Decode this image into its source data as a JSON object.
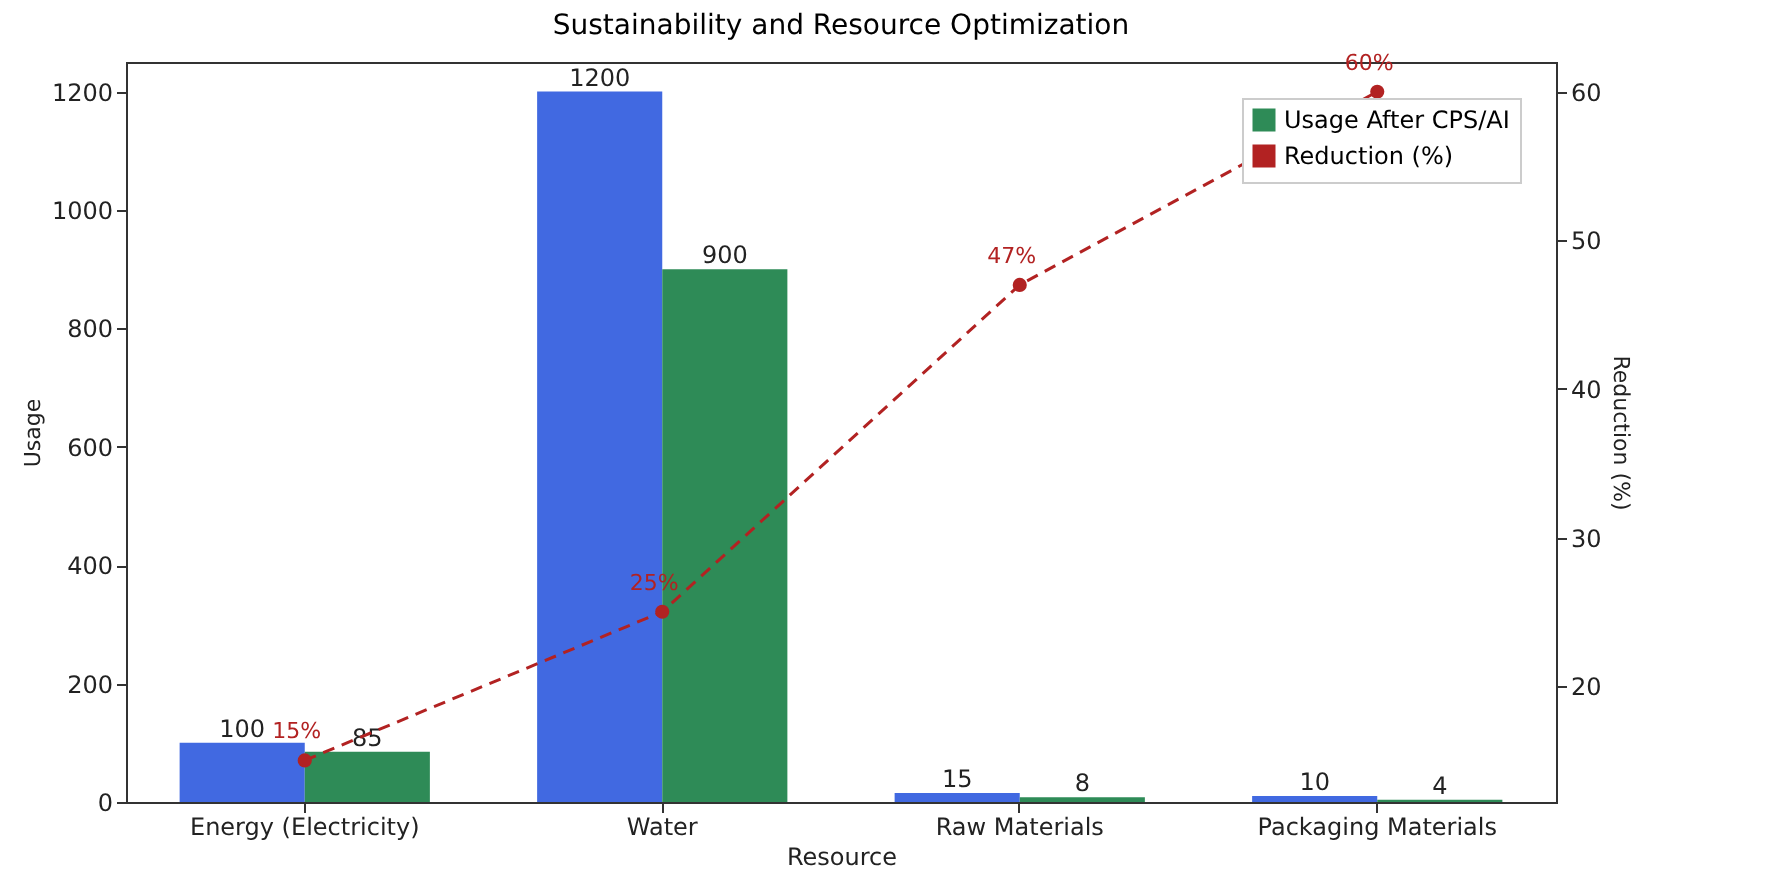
{
  "chart_data": {
    "type": "bar",
    "title": "Sustainability and Resource Optimization",
    "xlabel": "Resource",
    "ylabel": "Usage",
    "y2label": "Reduction (%)",
    "categories": [
      "Energy (Electricity)",
      "Water",
      "Raw Materials",
      "Packaging Materials"
    ],
    "series": [
      {
        "color": "#4169e1",
        "values": [
          100,
          1200,
          15,
          10
        ]
      },
      {
        "name": "Usage After CPS/AI",
        "color": "#2e8b57",
        "values": [
          85,
          900,
          8,
          4
        ]
      },
      {
        "name": "Reduction (%)",
        "type": "line",
        "axis": "y2",
        "color": "#b22222",
        "values": [
          15,
          25,
          47,
          60
        ],
        "value_labels": [
          "15%",
          "25%",
          "47%",
          "60%"
        ]
      }
    ],
    "ylim": [
      0,
      1250
    ],
    "yticks": [
      0,
      200,
      400,
      600,
      800,
      1000,
      1200
    ],
    "y2lim": [
      12.2,
      62
    ],
    "y2ticks": [
      20,
      30,
      40,
      50,
      60
    ],
    "data_labels": true,
    "legend": "top right",
    "marker": "circle",
    "line_style": "dashed",
    "grid": false
  }
}
